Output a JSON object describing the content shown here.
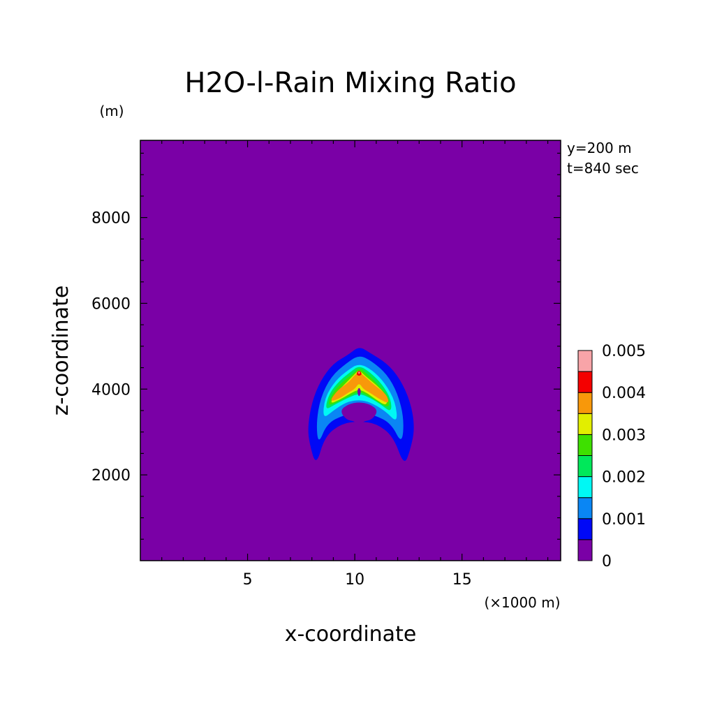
{
  "chart_data": {
    "type": "heatmap",
    "title": "H2O-l-Rain Mixing Ratio",
    "xlabel": "x-coordinate",
    "ylabel": "z-coordinate",
    "x_unit": "(×1000 m)",
    "y_unit": "(m)",
    "xlim": [
      0,
      19.6
    ],
    "ylim": [
      0,
      9800
    ],
    "x_ticks": [
      5,
      10,
      15
    ],
    "y_ticks": [
      2000,
      4000,
      6000,
      8000
    ],
    "annotations": [
      "y=200 m",
      "t=840 sec"
    ],
    "colorbar": {
      "levels": [
        0,
        0.0005,
        0.001,
        0.0015,
        0.002,
        0.0025,
        0.003,
        0.0035,
        0.004,
        0.0045,
        0.005
      ],
      "tick_labels": [
        "0",
        "0.001",
        "0.002",
        "0.003",
        "0.004",
        "0.005"
      ],
      "tick_values": [
        0,
        0.001,
        0.002,
        0.003,
        0.004,
        0.005
      ],
      "colors": [
        "#7a00a6",
        "#0008f6",
        "#0a86f4",
        "#00f8f4",
        "#00e85a",
        "#3ee000",
        "#e2ee00",
        "#f8980a",
        "#f40000",
        "#f8a4a8"
      ]
    },
    "contours": [
      {
        "level": 0.0005,
        "points": [
          [
            8.2,
            2200
          ],
          [
            7.9,
            2700
          ],
          [
            7.8,
            3100
          ],
          [
            8.0,
            3700
          ],
          [
            8.4,
            4200
          ],
          [
            9.0,
            4600
          ],
          [
            9.7,
            4800
          ],
          [
            10.2,
            5000
          ],
          [
            10.7,
            4850
          ],
          [
            11.5,
            4600
          ],
          [
            12.1,
            4250
          ],
          [
            12.6,
            3700
          ],
          [
            12.8,
            3100
          ],
          [
            12.6,
            2600
          ],
          [
            12.3,
            2200
          ],
          [
            11.8,
            2900
          ],
          [
            11.0,
            3200
          ],
          [
            10.2,
            3250
          ],
          [
            9.4,
            3200
          ],
          [
            8.6,
            2900
          ]
        ]
      },
      {
        "level": 0.001,
        "points": [
          [
            8.3,
            2700
          ],
          [
            8.2,
            3200
          ],
          [
            8.4,
            3800
          ],
          [
            8.9,
            4300
          ],
          [
            9.6,
            4600
          ],
          [
            10.2,
            4800
          ],
          [
            10.8,
            4650
          ],
          [
            11.5,
            4350
          ],
          [
            12.0,
            3900
          ],
          [
            12.3,
            3300
          ],
          [
            12.2,
            2700
          ],
          [
            11.7,
            3200
          ],
          [
            10.9,
            3400
          ],
          [
            10.2,
            3450
          ],
          [
            9.5,
            3400
          ],
          [
            8.7,
            3200
          ]
        ]
      },
      {
        "level": 0.0015,
        "points": [
          [
            8.5,
            3300
          ],
          [
            8.6,
            3800
          ],
          [
            9.1,
            4200
          ],
          [
            9.7,
            4450
          ],
          [
            10.2,
            4600
          ],
          [
            10.8,
            4450
          ],
          [
            11.4,
            4150
          ],
          [
            11.9,
            3700
          ],
          [
            12.0,
            3200
          ],
          [
            11.4,
            3500
          ],
          [
            10.7,
            3700
          ],
          [
            10.2,
            3750
          ],
          [
            9.6,
            3700
          ],
          [
            9.0,
            3500
          ]
        ]
      },
      {
        "level": 0.002,
        "points": [
          [
            8.6,
            3500
          ],
          [
            8.8,
            3900
          ],
          [
            9.3,
            4200
          ],
          [
            9.8,
            4400
          ],
          [
            10.2,
            4550
          ],
          [
            10.7,
            4400
          ],
          [
            11.3,
            4100
          ],
          [
            11.7,
            3750
          ],
          [
            11.7,
            3450
          ],
          [
            11.2,
            3650
          ],
          [
            10.7,
            3800
          ],
          [
            10.2,
            3900
          ],
          [
            9.7,
            3800
          ],
          [
            9.1,
            3650
          ]
        ]
      },
      {
        "level": 0.0025,
        "points": [
          [
            8.7,
            3600
          ],
          [
            9.0,
            3950
          ],
          [
            9.5,
            4200
          ],
          [
            9.9,
            4350
          ],
          [
            10.2,
            4500
          ],
          [
            10.6,
            4350
          ],
          [
            11.1,
            4100
          ],
          [
            11.6,
            3800
          ],
          [
            11.6,
            3550
          ],
          [
            11.1,
            3700
          ],
          [
            10.6,
            3850
          ],
          [
            10.2,
            3950
          ],
          [
            9.8,
            3850
          ],
          [
            9.2,
            3700
          ]
        ]
      },
      {
        "level": 0.003,
        "points": [
          [
            8.8,
            3650
          ],
          [
            9.2,
            3950
          ],
          [
            9.6,
            4150
          ],
          [
            10.0,
            4350
          ],
          [
            10.2,
            4450
          ],
          [
            10.5,
            4300
          ],
          [
            11.0,
            4100
          ],
          [
            11.5,
            3850
          ],
          [
            11.5,
            3600
          ],
          [
            11.0,
            3750
          ],
          [
            10.6,
            3900
          ],
          [
            10.2,
            4000
          ],
          [
            9.8,
            3900
          ],
          [
            9.3,
            3750
          ]
        ]
      },
      {
        "level": 0.0035,
        "points": [
          [
            8.8,
            3700
          ],
          [
            9.2,
            3980
          ],
          [
            9.7,
            4150
          ],
          [
            10.0,
            4330
          ],
          [
            10.2,
            4400
          ],
          [
            10.5,
            4280
          ],
          [
            10.9,
            4100
          ],
          [
            11.5,
            3870
          ],
          [
            11.6,
            3650
          ],
          [
            11.1,
            3780
          ],
          [
            10.7,
            3920
          ],
          [
            10.4,
            4000
          ],
          [
            10.2,
            4150
          ],
          [
            10.0,
            4000
          ],
          [
            9.7,
            3920
          ],
          [
            9.3,
            3780
          ]
        ]
      },
      {
        "level": 0.004,
        "points": [
          [
            10.05,
            4350
          ],
          [
            10.2,
            4450
          ],
          [
            10.35,
            4350
          ],
          [
            10.2,
            4300
          ]
        ]
      },
      {
        "level": 0.0045,
        "points": [
          [
            10.15,
            4380
          ],
          [
            10.2,
            4420
          ],
          [
            10.25,
            4380
          ],
          [
            10.2,
            4350
          ]
        ]
      }
    ],
    "holes": [
      {
        "level": 0.0005,
        "points": [
          [
            9.3,
            3500
          ],
          [
            9.6,
            3280
          ],
          [
            10.0,
            3250
          ],
          [
            10.2,
            3150
          ],
          [
            10.4,
            3250
          ],
          [
            10.8,
            3280
          ],
          [
            11.1,
            3500
          ],
          [
            10.7,
            3650
          ],
          [
            10.2,
            3700
          ],
          [
            9.7,
            3650
          ]
        ]
      },
      {
        "level": 0.0005,
        "points": [
          [
            10.1,
            3950
          ],
          [
            10.2,
            4050
          ],
          [
            10.3,
            3950
          ],
          [
            10.2,
            3800
          ]
        ]
      }
    ]
  }
}
